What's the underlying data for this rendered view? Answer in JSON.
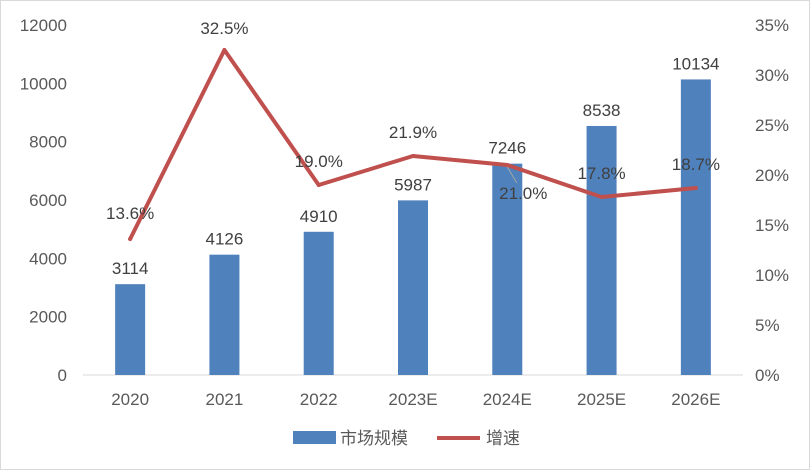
{
  "chart_data": {
    "type": "bar",
    "categories": [
      "2020",
      "2021",
      "2022",
      "2023E",
      "2024E",
      "2025E",
      "2026E"
    ],
    "series": [
      {
        "name": "市场规模",
        "type": "bar",
        "axis": "left",
        "color": "#4f81bd",
        "values": [
          3114,
          4126,
          4910,
          5987,
          7246,
          8538,
          10134
        ],
        "labels": [
          "3114",
          "4126",
          "4910",
          "5987",
          "7246",
          "8538",
          "10134"
        ]
      },
      {
        "name": "增速",
        "type": "line",
        "axis": "right",
        "color": "#c0504d",
        "values": [
          13.6,
          32.5,
          19.0,
          21.9,
          21.0,
          17.8,
          18.7
        ],
        "labels": [
          "13.6%",
          "32.5%",
          "19.0%",
          "21.9%",
          "21.0%",
          "17.8%",
          "18.7%"
        ]
      }
    ],
    "y_left": {
      "min": 0,
      "max": 12000,
      "ticks": [
        "0",
        "2000",
        "4000",
        "6000",
        "8000",
        "10000",
        "12000"
      ]
    },
    "y_right": {
      "min": 0,
      "max": 35,
      "ticks": [
        "0%",
        "5%",
        "10%",
        "15%",
        "20%",
        "25%",
        "30%",
        "35%"
      ]
    },
    "grid": false,
    "legend_position": "bottom"
  }
}
